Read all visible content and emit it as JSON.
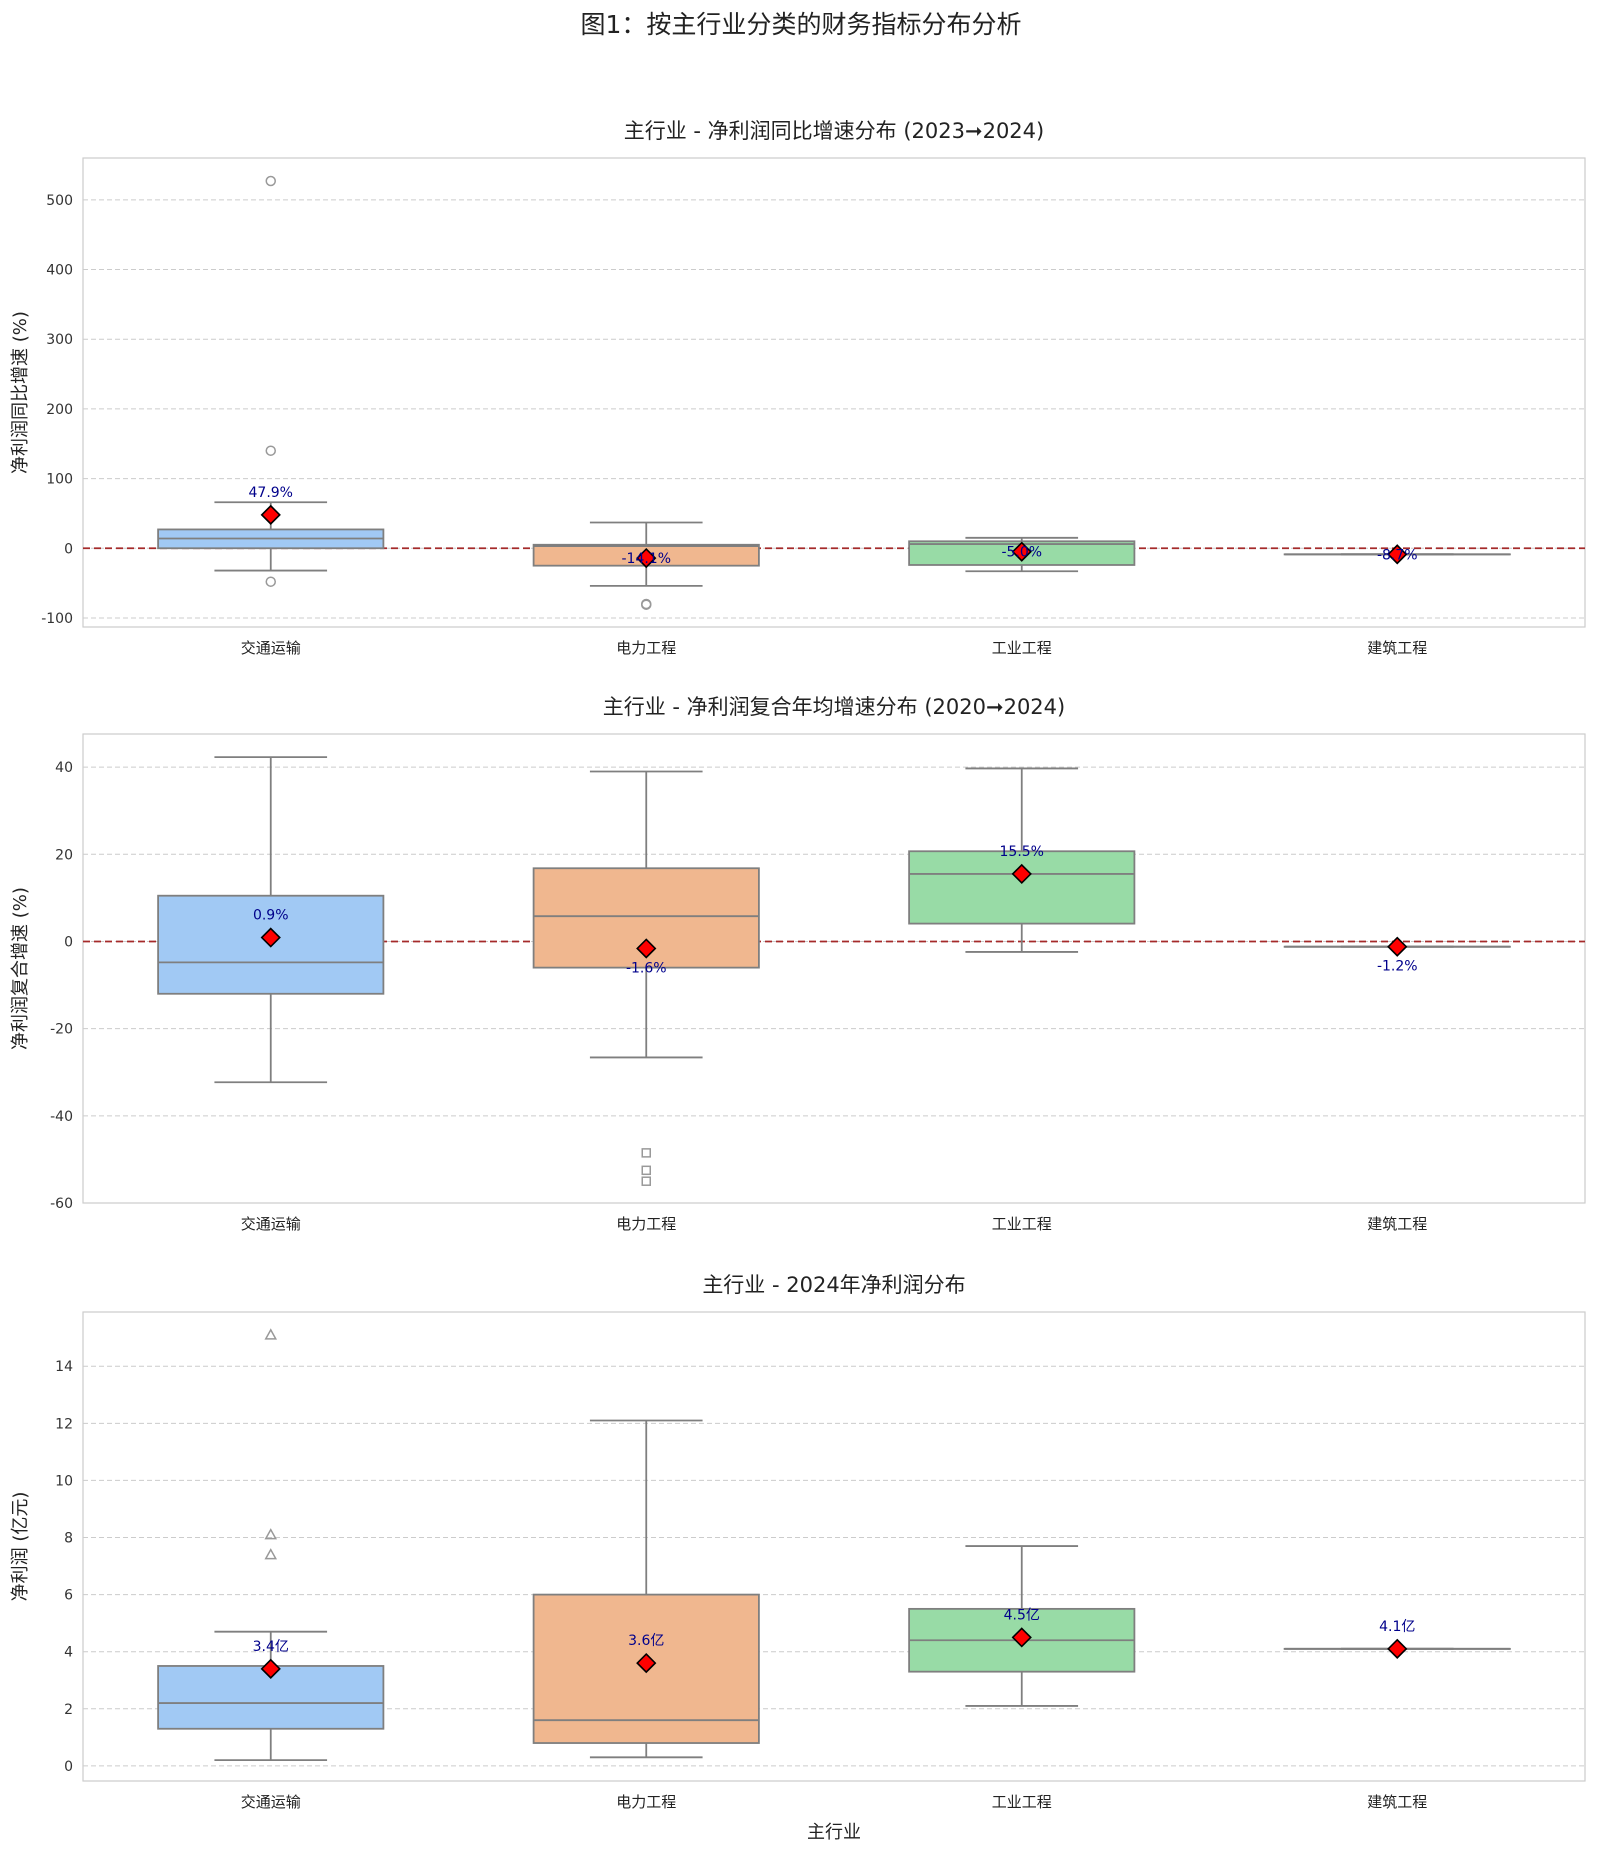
{
  "figure_title": "图1：按主行业分类的财务指标分布分析",
  "x_axis_label": "主行业",
  "colors": {
    "fills": [
      "#a1c9f4",
      "#f0b78f",
      "#98dba6",
      "#a1c9f4"
    ],
    "box_edge": "#7f7f7f",
    "mean_marker": "#ff0000",
    "zero_line": "#a52a2a",
    "label_text": "#00008b",
    "grid": "#cccccc"
  },
  "chart_data": [
    {
      "type": "box",
      "title": "主行业 - 净利润同比增速分布 (2023➞2024)",
      "ylabel": "净利润同比增速 (%)",
      "xlabel": "",
      "categories": [
        "交通运输",
        "电力工程",
        "工业工程",
        "建筑工程"
      ],
      "ylim": [
        -113,
        560
      ],
      "yticks": [
        -100,
        0,
        100,
        200,
        300,
        400,
        500
      ],
      "zero_line": true,
      "grid": true,
      "outlier_marker": "circle",
      "series": [
        {
          "name": "交通运输",
          "whisker_low": -32,
          "q1": 0,
          "median": 14,
          "q3": 27,
          "whisker_high": 66,
          "outliers": [
            527,
            140,
            -48
          ],
          "mean": 47.9,
          "mean_label": "47.9%",
          "label_pos": "above"
        },
        {
          "name": "电力工程",
          "whisker_low": -54,
          "q1": -25,
          "median": 3,
          "q3": 5,
          "whisker_high": 37,
          "outliers": [
            -80,
            -81
          ],
          "mean": -14.1,
          "mean_label": "-14.1%",
          "label_pos": "center"
        },
        {
          "name": "工业工程",
          "whisker_low": -33,
          "q1": -24,
          "median": 6,
          "q3": 10,
          "whisker_high": 15,
          "outliers": [],
          "mean": -5.0,
          "mean_label": "-5.0%",
          "label_pos": "center"
        },
        {
          "name": "建筑工程",
          "whisker_low": -8.7,
          "q1": -8.7,
          "median": -8.7,
          "q3": -8.7,
          "whisker_high": -8.7,
          "outliers": [],
          "mean": -8.7,
          "mean_label": "-8.7%",
          "label_pos": "center"
        }
      ]
    },
    {
      "type": "box",
      "title": "主行业 - 净利润复合年均增速分布 (2020➞2024)",
      "ylabel": "净利润复合增速 (%)",
      "xlabel": "",
      "categories": [
        "交通运输",
        "电力工程",
        "工业工程",
        "建筑工程"
      ],
      "ylim": [
        -60,
        47.6
      ],
      "yticks": [
        -60,
        -40,
        -20,
        0,
        20,
        40
      ],
      "zero_line": true,
      "grid": true,
      "outlier_marker": "square",
      "series": [
        {
          "name": "交通运输",
          "whisker_low": -32.3,
          "q1": -12,
          "median": -4.8,
          "q3": 10.5,
          "whisker_high": 42.3,
          "outliers": [],
          "mean": 0.9,
          "mean_label": "0.9%",
          "label_pos": "above"
        },
        {
          "name": "电力工程",
          "whisker_low": -26.6,
          "q1": -6,
          "median": 5.8,
          "q3": 16.8,
          "whisker_high": 39,
          "outliers": [
            -48.5,
            -52.5,
            -55
          ],
          "mean": -1.6,
          "mean_label": "-1.6%",
          "label_pos": "below"
        },
        {
          "name": "工业工程",
          "whisker_low": -2.4,
          "q1": 4.1,
          "median": 15.5,
          "q3": 20.7,
          "whisker_high": 39.7,
          "outliers": [],
          "mean": 15.5,
          "mean_label": "15.5%",
          "label_pos": "above"
        },
        {
          "name": "建筑工程",
          "whisker_low": -1.2,
          "q1": -1.2,
          "median": -1.2,
          "q3": -1.2,
          "whisker_high": -1.2,
          "outliers": [],
          "mean": -1.2,
          "mean_label": "-1.2%",
          "label_pos": "below"
        }
      ]
    },
    {
      "type": "box",
      "title": "主行业 - 2024年净利润分布",
      "ylabel": "净利润 (亿元)",
      "xlabel": "主行业",
      "categories": [
        "交通运输",
        "电力工程",
        "工业工程",
        "建筑工程"
      ],
      "ylim": [
        -0.53,
        15.9
      ],
      "yticks": [
        0,
        2,
        4,
        6,
        8,
        10,
        12,
        14
      ],
      "zero_line": false,
      "grid": true,
      "outlier_marker": "triangle",
      "series": [
        {
          "name": "交通运输",
          "whisker_low": 0.2,
          "q1": 1.3,
          "median": 2.2,
          "q3": 3.5,
          "whisker_high": 4.7,
          "outliers": [
            15.1,
            8.1,
            7.4
          ],
          "mean": 3.4,
          "mean_label": "3.4亿",
          "label_pos": "above"
        },
        {
          "name": "电力工程",
          "whisker_low": 0.3,
          "q1": 0.8,
          "median": 1.6,
          "q3": 6.0,
          "whisker_high": 12.1,
          "outliers": [],
          "mean": 3.6,
          "mean_label": "3.6亿",
          "label_pos": "above"
        },
        {
          "name": "工业工程",
          "whisker_low": 2.1,
          "q1": 3.3,
          "median": 4.4,
          "q3": 5.5,
          "whisker_high": 7.7,
          "outliers": [],
          "mean": 4.5,
          "mean_label": "4.5亿",
          "label_pos": "above"
        },
        {
          "name": "建筑工程",
          "whisker_low": 4.1,
          "q1": 4.1,
          "median": 4.1,
          "q3": 4.1,
          "whisker_high": 4.1,
          "outliers": [],
          "mean": 4.1,
          "mean_label": "4.1亿",
          "label_pos": "above"
        }
      ]
    }
  ]
}
